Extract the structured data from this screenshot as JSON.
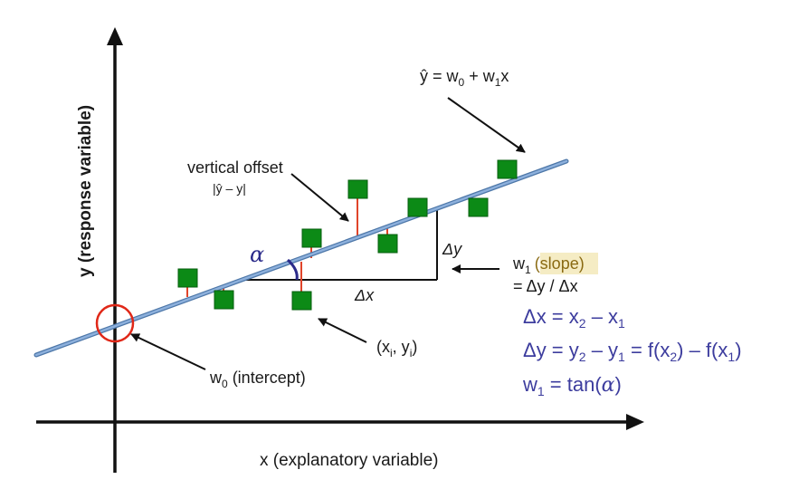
{
  "axes": {
    "x_label": "x (explanatory variable)",
    "y_label": "y (response variable)"
  },
  "regression_line": {
    "equation_lhs": "ŷ",
    "equation_eq": " = w",
    "equation_sub0": "0",
    "equation_plus": " + w",
    "equation_sub1": "1",
    "equation_x": "x"
  },
  "annotations": {
    "vertical_offset_label": "vertical offset",
    "vertical_offset_formula": "|ŷ – y|",
    "alpha": "α",
    "delta_x": "Δx",
    "delta_y": "Δy",
    "point_label_open": "(x",
    "point_label_sub_i1": "i",
    "point_label_mid": ", y",
    "point_label_sub_i2": "i",
    "point_label_close": ")",
    "intercept_w": "w",
    "intercept_sub": "0",
    "intercept_label": " (intercept)",
    "slope_w": "w",
    "slope_sub": "1",
    "slope_label": "(slope)",
    "slope_def": "= Δy / Δx"
  },
  "formulas": {
    "f1_a": "Δx = x",
    "f1_sub2": "2",
    "f1_b": " – x",
    "f1_sub1": "1",
    "f2_a": "Δy = y",
    "f2_sub2": "2",
    "f2_b": " – y",
    "f2_sub1": "1",
    "f2_c": " = f(x",
    "f2_sub3": "2",
    "f2_d": ") – f(x",
    "f2_sub4": "1",
    "f2_e": ")",
    "f3_a": "w",
    "f3_sub": "1",
    "f3_b": " = tan(",
    "f3_alpha": "α",
    "f3_c": ")"
  },
  "colors": {
    "regression_line": "#6f97c8",
    "point_fill": "#0c8a16",
    "residual": "#e0442a",
    "intercept_circle": "#e02818",
    "angle_arc": "#2b2b8a",
    "formula_text": "#3d3d9e",
    "slope_highlight": "#f5ecc4"
  }
}
